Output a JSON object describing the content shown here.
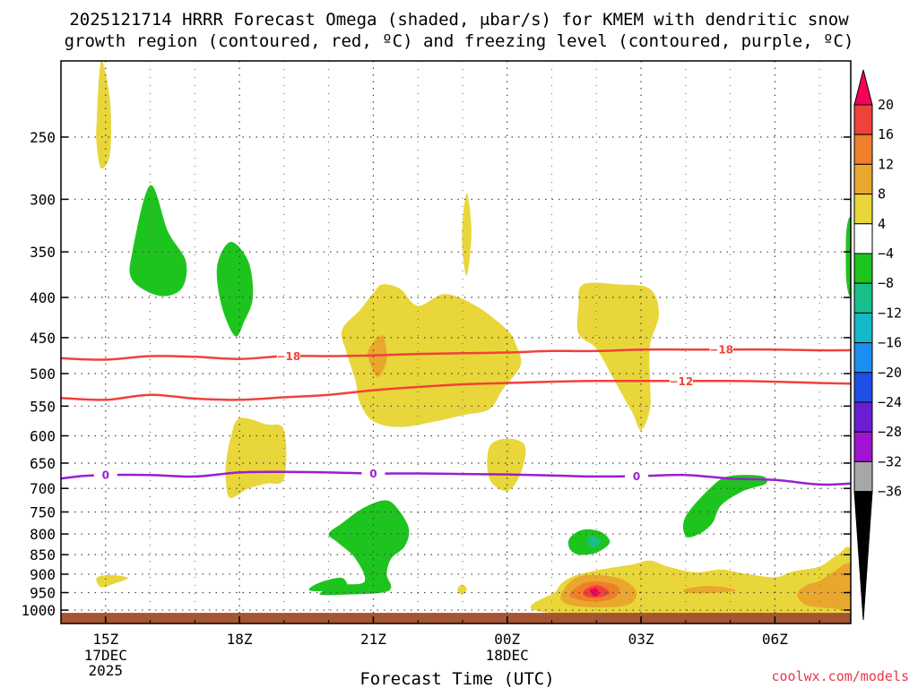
{
  "chart_data": {
    "type": "heatmap",
    "title_line1": "2025121714 HRRR Forecast Omega (shaded, μbar/s) for KMEM with dendritic snow",
    "title_line2": "growth region (contoured, red, ºC) and freezing level (contoured, purple, ºC)",
    "xlabel": "Forecast Time (UTC)",
    "ylabel": "",
    "x_hours": [
      15,
      18,
      21,
      24,
      27,
      30
    ],
    "x_tick_labels": [
      "15Z",
      "18Z",
      "21Z",
      "00Z",
      "03Z",
      "06Z"
    ],
    "x_date_labels": [
      {
        "hour": 15,
        "lines": [
          "17DEC",
          "2025"
        ]
      },
      {
        "hour": 24,
        "lines": [
          "18DEC"
        ]
      }
    ],
    "xlim": [
      14,
      31.7
    ],
    "pressure_levels": [
      250,
      300,
      350,
      400,
      450,
      500,
      550,
      600,
      650,
      700,
      750,
      800,
      850,
      900,
      950,
      1000
    ],
    "ylim": [
      200,
      1040
    ],
    "colorbar": {
      "labels": [
        "20",
        "16",
        "12",
        "8",
        "4",
        "−4",
        "−8",
        "−12",
        "−16",
        "−20",
        "−24",
        "−28",
        "−32",
        "−36"
      ],
      "colors": [
        "#f5005a",
        "#f0413a",
        "#ef7f2a",
        "#e9a72e",
        "#e9d63a",
        "#ffffff",
        "#1ec41e",
        "#17c08b",
        "#14b9c9",
        "#1b8ff0",
        "#1f4ee6",
        "#6a1ed2",
        "#a113d2",
        "#a7a7a7",
        "#000000"
      ]
    },
    "dgz_contours": [
      {
        "label": "−18",
        "points": [
          [
            14,
            478
          ],
          [
            15,
            480
          ],
          [
            16,
            475
          ],
          [
            17,
            476
          ],
          [
            18,
            479
          ],
          [
            19,
            475
          ],
          [
            20,
            475
          ],
          [
            21,
            474
          ],
          [
            22,
            472
          ],
          [
            23,
            471
          ],
          [
            24,
            470
          ],
          [
            25,
            468
          ],
          [
            26,
            468
          ],
          [
            27,
            466
          ],
          [
            28,
            466
          ],
          [
            29,
            466
          ],
          [
            30,
            466
          ],
          [
            31,
            467
          ],
          [
            31.7,
            467
          ]
        ]
      },
      {
        "label": "−12",
        "points": [
          [
            14,
            537
          ],
          [
            15,
            540
          ],
          [
            16,
            532
          ],
          [
            17,
            538
          ],
          [
            18,
            540
          ],
          [
            19,
            536
          ],
          [
            20,
            532
          ],
          [
            21,
            525
          ],
          [
            22,
            520
          ],
          [
            23,
            516
          ],
          [
            24,
            514
          ],
          [
            25,
            512
          ],
          [
            26,
            511
          ],
          [
            27,
            511
          ],
          [
            28,
            511
          ],
          [
            29,
            511
          ],
          [
            30,
            512
          ],
          [
            31,
            514
          ],
          [
            31.7,
            515
          ]
        ]
      }
    ],
    "freezing_level": {
      "label": "0",
      "points": [
        [
          14,
          680
        ],
        [
          14.5,
          675
        ],
        [
          15,
          673
        ],
        [
          16,
          673
        ],
        [
          17,
          676
        ],
        [
          18,
          668
        ],
        [
          19,
          667
        ],
        [
          20,
          668
        ],
        [
          21,
          670
        ],
        [
          22,
          670
        ],
        [
          23,
          671
        ],
        [
          24,
          672
        ],
        [
          25,
          674
        ],
        [
          26,
          676
        ],
        [
          27,
          675
        ],
        [
          28,
          673
        ],
        [
          29,
          680
        ],
        [
          30,
          683
        ],
        [
          31,
          692
        ],
        [
          31.7,
          690
        ]
      ]
    },
    "omega_regions": [
      {
        "value": 4,
        "points": [
          [
            14.8,
            240
          ],
          [
            14.9,
            200
          ],
          [
            15.1,
            225
          ],
          [
            15.1,
            262
          ],
          [
            14.9,
            274
          ],
          [
            14.8,
            255
          ]
        ]
      },
      {
        "value": -8,
        "points": [
          [
            15.6,
            350
          ],
          [
            16.0,
            288
          ],
          [
            16.4,
            330
          ],
          [
            16.8,
            360
          ],
          [
            16.7,
            390
          ],
          [
            16.2,
            398
          ],
          [
            15.6,
            380
          ]
        ]
      },
      {
        "value": -8,
        "points": [
          [
            17.5,
            365
          ],
          [
            17.8,
            340
          ],
          [
            18.2,
            360
          ],
          [
            18.3,
            400
          ],
          [
            18.1,
            430
          ],
          [
            17.9,
            448
          ],
          [
            17.6,
            410
          ]
        ]
      },
      {
        "value": 4,
        "points": [
          [
            20.3,
            440
          ],
          [
            20.7,
            415
          ],
          [
            21.0,
            395
          ],
          [
            21.2,
            385
          ],
          [
            21.6,
            390
          ],
          [
            22.0,
            410
          ],
          [
            22.6,
            396
          ],
          [
            23.3,
            410
          ],
          [
            24.0,
            440
          ],
          [
            24.2,
            460
          ],
          [
            24.3,
            488
          ],
          [
            23.9,
            524
          ],
          [
            23.6,
            555
          ],
          [
            23.0,
            565
          ],
          [
            22.4,
            575
          ],
          [
            21.6,
            585
          ],
          [
            21.0,
            575
          ],
          [
            20.7,
            545
          ],
          [
            20.6,
            510
          ],
          [
            20.4,
            470
          ]
        ]
      },
      {
        "value": 8,
        "points": [
          [
            20.9,
            465
          ],
          [
            21.2,
            447
          ],
          [
            21.3,
            480
          ],
          [
            21.1,
            505
          ],
          [
            20.9,
            480
          ]
        ]
      },
      {
        "value": 4,
        "points": [
          [
            23.0,
            320
          ],
          [
            23.1,
            295
          ],
          [
            23.2,
            330
          ],
          [
            23.1,
            375
          ],
          [
            23.0,
            350
          ]
        ]
      },
      {
        "value": 4,
        "points": [
          [
            25.6,
            410
          ],
          [
            25.7,
            385
          ],
          [
            26.5,
            385
          ],
          [
            27.2,
            390
          ],
          [
            27.4,
            420
          ],
          [
            27.2,
            460
          ],
          [
            27.2,
            510
          ],
          [
            27.2,
            555
          ],
          [
            27.0,
            590
          ],
          [
            26.8,
            560
          ],
          [
            26.4,
            510
          ],
          [
            26.0,
            465
          ],
          [
            25.6,
            445
          ]
        ]
      },
      {
        "value": 4,
        "points": [
          [
            17.7,
            650
          ],
          [
            17.8,
            605
          ],
          [
            18.0,
            570
          ],
          [
            18.6,
            580
          ],
          [
            19.0,
            590
          ],
          [
            19.0,
            680
          ],
          [
            18.6,
            690
          ],
          [
            18.2,
            700
          ],
          [
            17.8,
            720
          ],
          [
            17.7,
            690
          ]
        ]
      },
      {
        "value": 4,
        "points": [
          [
            23.6,
            620
          ],
          [
            24.0,
            605
          ],
          [
            24.4,
            618
          ],
          [
            24.3,
            670
          ],
          [
            24.0,
            705
          ],
          [
            23.6,
            680
          ]
        ]
      },
      {
        "value": -8,
        "points": [
          [
            28.0,
            760
          ],
          [
            28.6,
            695
          ],
          [
            29.0,
            675
          ],
          [
            29.7,
            675
          ],
          [
            29.8,
            690
          ],
          [
            29.3,
            705
          ],
          [
            28.8,
            735
          ],
          [
            28.6,
            775
          ],
          [
            28.3,
            800
          ],
          [
            28.0,
            805
          ]
        ]
      },
      {
        "value": -8,
        "points": [
          [
            31.6,
            330
          ],
          [
            31.7,
            320
          ],
          [
            31.7,
            395
          ],
          [
            31.6,
            380
          ]
        ]
      },
      {
        "value": -8,
        "points": [
          [
            20.0,
            800
          ],
          [
            20.3,
            775
          ],
          [
            20.8,
            740
          ],
          [
            21.3,
            725
          ],
          [
            21.6,
            750
          ],
          [
            21.8,
            790
          ],
          [
            21.7,
            830
          ],
          [
            21.4,
            860
          ],
          [
            21.3,
            900
          ],
          [
            21.4,
            935
          ],
          [
            21.2,
            950
          ],
          [
            20.5,
            955
          ],
          [
            19.8,
            955
          ],
          [
            20.2,
            930
          ],
          [
            20.8,
            920
          ],
          [
            20.6,
            860
          ],
          [
            20.2,
            820
          ]
        ]
      },
      {
        "value": -8,
        "points": [
          [
            19.6,
            935
          ],
          [
            19.9,
            918
          ],
          [
            20.3,
            910
          ],
          [
            20.4,
            935
          ],
          [
            20.0,
            945
          ],
          [
            19.6,
            945
          ]
        ]
      },
      {
        "value": 4,
        "points": [
          [
            14.8,
            910
          ],
          [
            15.1,
            902
          ],
          [
            15.5,
            910
          ],
          [
            15.2,
            925
          ],
          [
            14.9,
            935
          ]
        ]
      },
      {
        "value": 4,
        "points": [
          [
            22.9,
            935
          ],
          [
            23.0,
            928
          ],
          [
            23.1,
            940
          ],
          [
            23.0,
            955
          ],
          [
            22.9,
            948
          ]
        ]
      },
      {
        "value": -8,
        "points": [
          [
            25.4,
            810
          ],
          [
            25.7,
            790
          ],
          [
            26.1,
            795
          ],
          [
            26.3,
            820
          ],
          [
            26.0,
            845
          ],
          [
            25.6,
            850
          ],
          [
            25.4,
            835
          ]
        ]
      },
      {
        "value": -12,
        "points": [
          [
            25.8,
            815
          ],
          [
            25.9,
            805
          ],
          [
            26.1,
            815
          ],
          [
            26.0,
            830
          ],
          [
            25.9,
            832
          ]
        ]
      },
      {
        "value": 4,
        "points": [
          [
            25.0,
            1008
          ],
          [
            25.1,
            945
          ],
          [
            25.4,
            910
          ],
          [
            26.0,
            890
          ],
          [
            26.8,
            875
          ],
          [
            27.2,
            865
          ],
          [
            27.6,
            880
          ],
          [
            28.2,
            895
          ],
          [
            28.8,
            888
          ],
          [
            29.3,
            898
          ],
          [
            30.0,
            908
          ],
          [
            30.4,
            893
          ],
          [
            31.0,
            880
          ],
          [
            31.4,
            850
          ],
          [
            31.7,
            840
          ],
          [
            31.7,
            1008
          ]
        ]
      },
      {
        "value": 8,
        "points": [
          [
            25.2,
            960
          ],
          [
            25.5,
            912
          ],
          [
            26.0,
            902
          ],
          [
            26.6,
            915
          ],
          [
            26.9,
            950
          ],
          [
            26.7,
            985
          ],
          [
            26.0,
            992
          ],
          [
            25.4,
            985
          ]
        ]
      },
      {
        "value": 8,
        "points": [
          [
            28.0,
            940
          ],
          [
            28.4,
            932
          ],
          [
            28.9,
            936
          ],
          [
            29.1,
            945
          ],
          [
            28.5,
            952
          ],
          [
            28.0,
            950
          ]
        ]
      },
      {
        "value": 8,
        "points": [
          [
            30.5,
            955
          ],
          [
            30.7,
            930
          ],
          [
            31.0,
            918
          ],
          [
            31.3,
            895
          ],
          [
            31.7,
            875
          ],
          [
            31.7,
            990
          ],
          [
            31.3,
            995
          ],
          [
            30.7,
            985
          ]
        ]
      },
      {
        "value": 12,
        "points": [
          [
            25.4,
            955
          ],
          [
            25.7,
            925
          ],
          [
            26.1,
            920
          ],
          [
            26.5,
            935
          ],
          [
            26.4,
            965
          ],
          [
            26.0,
            975
          ],
          [
            25.6,
            970
          ]
        ]
      },
      {
        "value": 16,
        "points": [
          [
            25.7,
            948
          ],
          [
            25.9,
            932
          ],
          [
            26.1,
            932
          ],
          [
            26.3,
            950
          ],
          [
            26.1,
            962
          ],
          [
            25.8,
            962
          ]
        ]
      },
      {
        "value": 20,
        "points": [
          [
            25.85,
            944
          ],
          [
            26.0,
            938
          ],
          [
            26.05,
            955
          ],
          [
            25.95,
            960
          ]
        ]
      }
    ],
    "ground_band": {
      "from_pressure": 1008,
      "to_pressure": 1040,
      "color": "#a55532"
    },
    "credit": "coolwx.com/models"
  }
}
